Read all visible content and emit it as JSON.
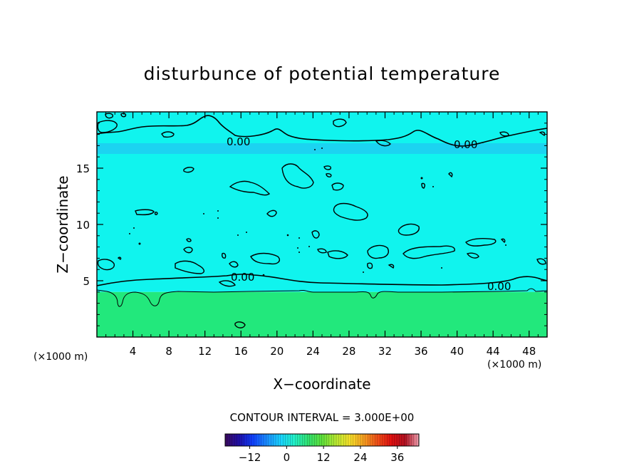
{
  "chart_data": {
    "type": "heatmap",
    "title": "disturbunce of potential temperature",
    "xlabel": "X−coordinate",
    "ylabel": "Z−coordinate",
    "x_unit": "(×1000 m)",
    "y_unit": "(×1000 m)",
    "xlim": [
      0,
      50
    ],
    "ylim": [
      0,
      20
    ],
    "xticks": [
      4,
      8,
      12,
      16,
      20,
      24,
      28,
      32,
      36,
      40,
      44,
      48
    ],
    "yticks": [
      5,
      10,
      15
    ],
    "contour_label": "0.00",
    "contour_interval_text": "CONTOUR INTERVAL = 3.000E+00",
    "colorbar": {
      "min": -20,
      "max": 43,
      "ticks": [
        -12,
        0,
        12,
        24,
        36
      ],
      "colors": [
        "#3b0a5c",
        "#1f0fa8",
        "#1040ff",
        "#1a8cff",
        "#19d2ff",
        "#22f0c8",
        "#30e070",
        "#5ee03a",
        "#b6e832",
        "#f5e02a",
        "#f6a020",
        "#f05018",
        "#e01010",
        "#b01020",
        "#f0a0b0"
      ]
    },
    "field": {
      "upper_value": -3,
      "upper_color": "#10f4ee",
      "lower_value": 3,
      "lower_color": "#22e87c",
      "stratum_color": "#20c8f2",
      "interface_z": 4.0,
      "zero_contour_lower_z": 4.6,
      "zero_contour_upper_z": 17.0
    }
  }
}
